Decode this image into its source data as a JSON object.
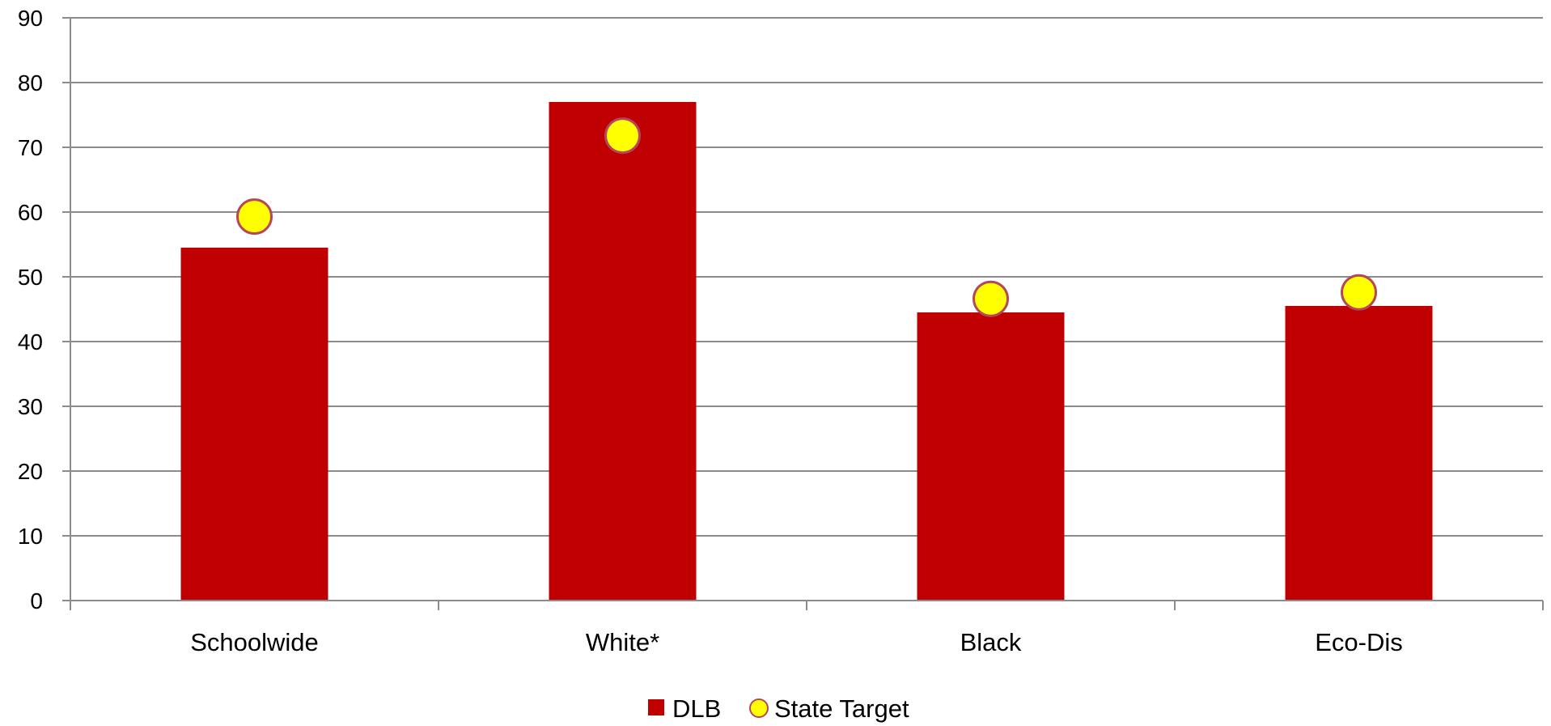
{
  "chart_data": {
    "type": "bar",
    "categories": [
      "Schoolwide",
      "White*",
      "Black",
      "Eco-Dis"
    ],
    "series": [
      {
        "name": "DLB",
        "kind": "bar",
        "values": [
          54.5,
          77,
          44.5,
          45.5
        ],
        "color": "#c00000"
      },
      {
        "name": "State Target",
        "kind": "marker",
        "values": [
          59.3,
          71.8,
          46.6,
          47.6
        ],
        "color": "#ffff00",
        "stroke": "#b5475a"
      }
    ],
    "ylim": [
      0,
      90
    ],
    "yticks": [
      0,
      10,
      20,
      30,
      40,
      50,
      60,
      70,
      80,
      90
    ],
    "grid": true,
    "legend_position": "bottom",
    "title": "",
    "xlabel": "",
    "ylabel": ""
  }
}
